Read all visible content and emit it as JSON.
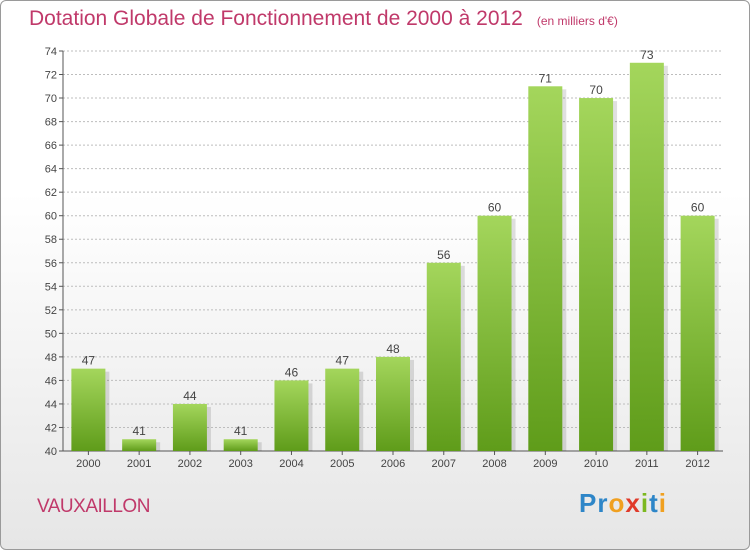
{
  "title": "Dotation Globale de Fonctionnement de 2000 à 2012",
  "subtitle": "(en milliers d'€)",
  "place": "VAUXAILLON",
  "logo": {
    "text": "Proxiti",
    "letters": [
      {
        "char": "P",
        "color": "#2e86c8"
      },
      {
        "char": "r",
        "color": "#2e86c8"
      },
      {
        "char": "o",
        "color": "#f0a020"
      },
      {
        "char": "x",
        "color": "#e03a2a"
      },
      {
        "char": "i",
        "color": "#7cb820"
      },
      {
        "char": "t",
        "color": "#2e86c8"
      },
      {
        "char": "i",
        "color": "#f0a020"
      }
    ]
  },
  "colors": {
    "bar_top": "#a4d65c",
    "bar_bottom": "#5f9c1a",
    "title": "#c0396a",
    "grid": "#bdbdbd"
  },
  "chart_data": {
    "type": "bar",
    "title": "Dotation Globale de Fonctionnement de 2000 à 2012",
    "subtitle": "(en milliers d'€)",
    "xlabel": "",
    "ylabel": "",
    "categories": [
      "2000",
      "2001",
      "2002",
      "2003",
      "2004",
      "2005",
      "2006",
      "2007",
      "2008",
      "2009",
      "2010",
      "2011",
      "2012"
    ],
    "values": [
      47,
      41,
      44,
      41,
      46,
      47,
      48,
      56,
      60,
      71,
      70,
      73,
      60
    ],
    "ylim": [
      40,
      74
    ],
    "yticks": [
      40,
      42,
      44,
      46,
      48,
      50,
      52,
      54,
      56,
      58,
      60,
      62,
      64,
      66,
      68,
      70,
      72,
      74
    ],
    "grid": true,
    "data_labels": true
  }
}
